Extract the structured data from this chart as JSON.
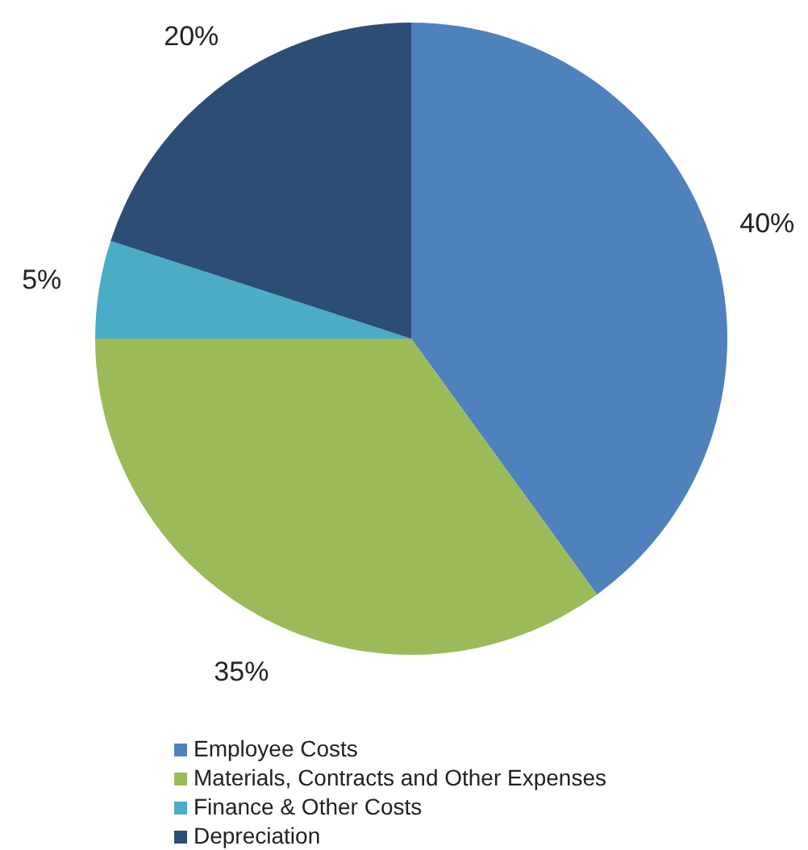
{
  "chart_data": {
    "type": "pie",
    "categories": [
      "Employee Costs",
      "Materials, Contracts and Other Expenses",
      "Finance & Other Costs",
      "Depreciation"
    ],
    "values": [
      40,
      35,
      5,
      20
    ],
    "colors": [
      "#4f81bd",
      "#9bbb59",
      "#4bacc6",
      "#2c4d75"
    ],
    "value_labels": [
      "40%",
      "35%",
      "5%",
      "20%"
    ],
    "legend": "bottom"
  }
}
